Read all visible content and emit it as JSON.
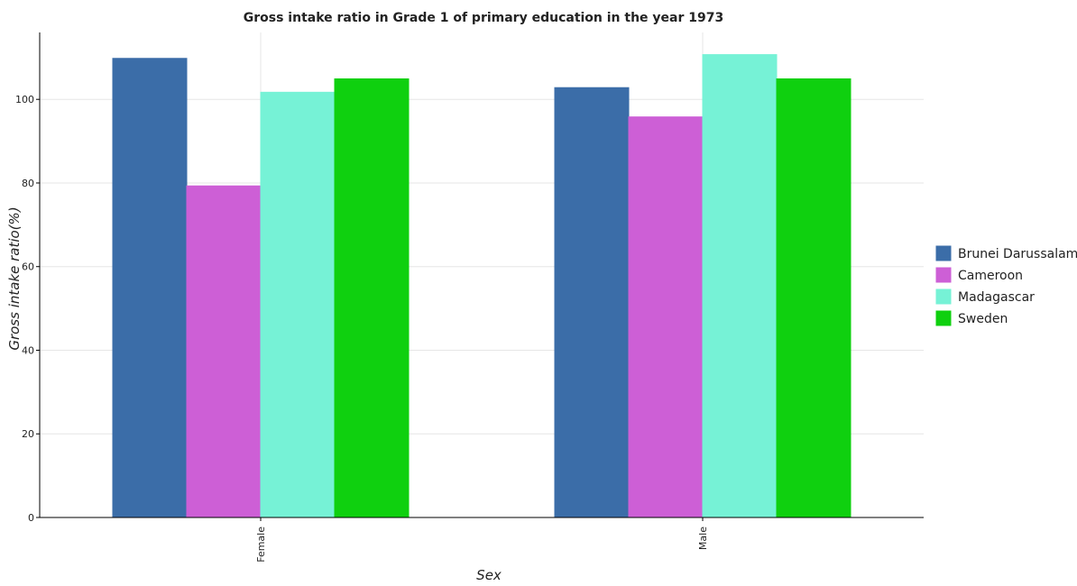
{
  "chart_data": {
    "type": "bar",
    "title": "Gross intake ratio in Grade 1 of primary education in the year 1973",
    "xlabel": "Sex",
    "ylabel": "Gross intake ratio(%)",
    "categories": [
      "Female",
      "Male"
    ],
    "ylim": [
      0,
      116
    ],
    "yticks": [
      0,
      20,
      40,
      60,
      80,
      100
    ],
    "grid": true,
    "legend_position": "right",
    "series": [
      {
        "name": "Brunei Darussalam",
        "color": "#3b6da8",
        "values": [
          109.8,
          102.8
        ]
      },
      {
        "name": "Cameroon",
        "color": "#cd5fd6",
        "values": [
          79.3,
          95.8
        ]
      },
      {
        "name": "Madagascar",
        "color": "#76f2d6",
        "values": [
          101.7,
          110.7
        ]
      },
      {
        "name": "Sweden",
        "color": "#0fd00f",
        "values": [
          104.9,
          104.9
        ]
      }
    ]
  }
}
